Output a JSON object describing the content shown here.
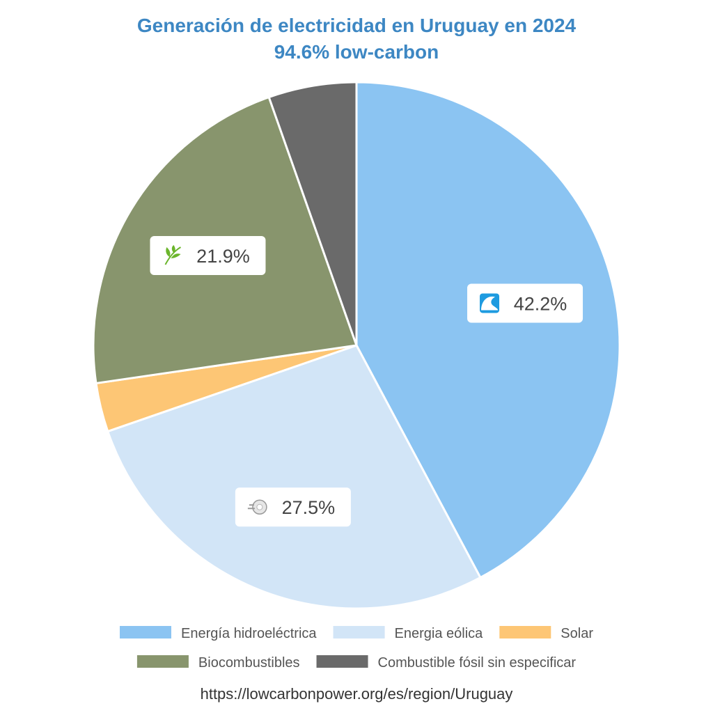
{
  "chart_data": {
    "type": "pie",
    "title": "Generación de electricidad en Uruguay en 2024",
    "subtitle": "94.6% low-carbon",
    "slices": [
      {
        "name": "Energía hidroeléctrica",
        "value": 42.2,
        "color": "#8bc4f2",
        "label": "42.2%",
        "icon": "water-wave-icon"
      },
      {
        "name": "Energia eólica",
        "value": 27.5,
        "color": "#d2e5f7",
        "label": "27.5%",
        "icon": "wind-icon"
      },
      {
        "name": "Solar",
        "value": 3.0,
        "color": "#fdc675",
        "label": "",
        "icon": ""
      },
      {
        "name": "Biocombustibles",
        "value": 21.9,
        "color": "#88956d",
        "label": "21.9%",
        "icon": "leaf-icon"
      },
      {
        "name": "Combustible fósil sin especificar",
        "value": 5.4,
        "color": "#6a6a6a",
        "label": "",
        "icon": ""
      }
    ],
    "legend_position": "bottom",
    "source": "https://lowcarbonpower.org/es/region/Uruguay"
  }
}
